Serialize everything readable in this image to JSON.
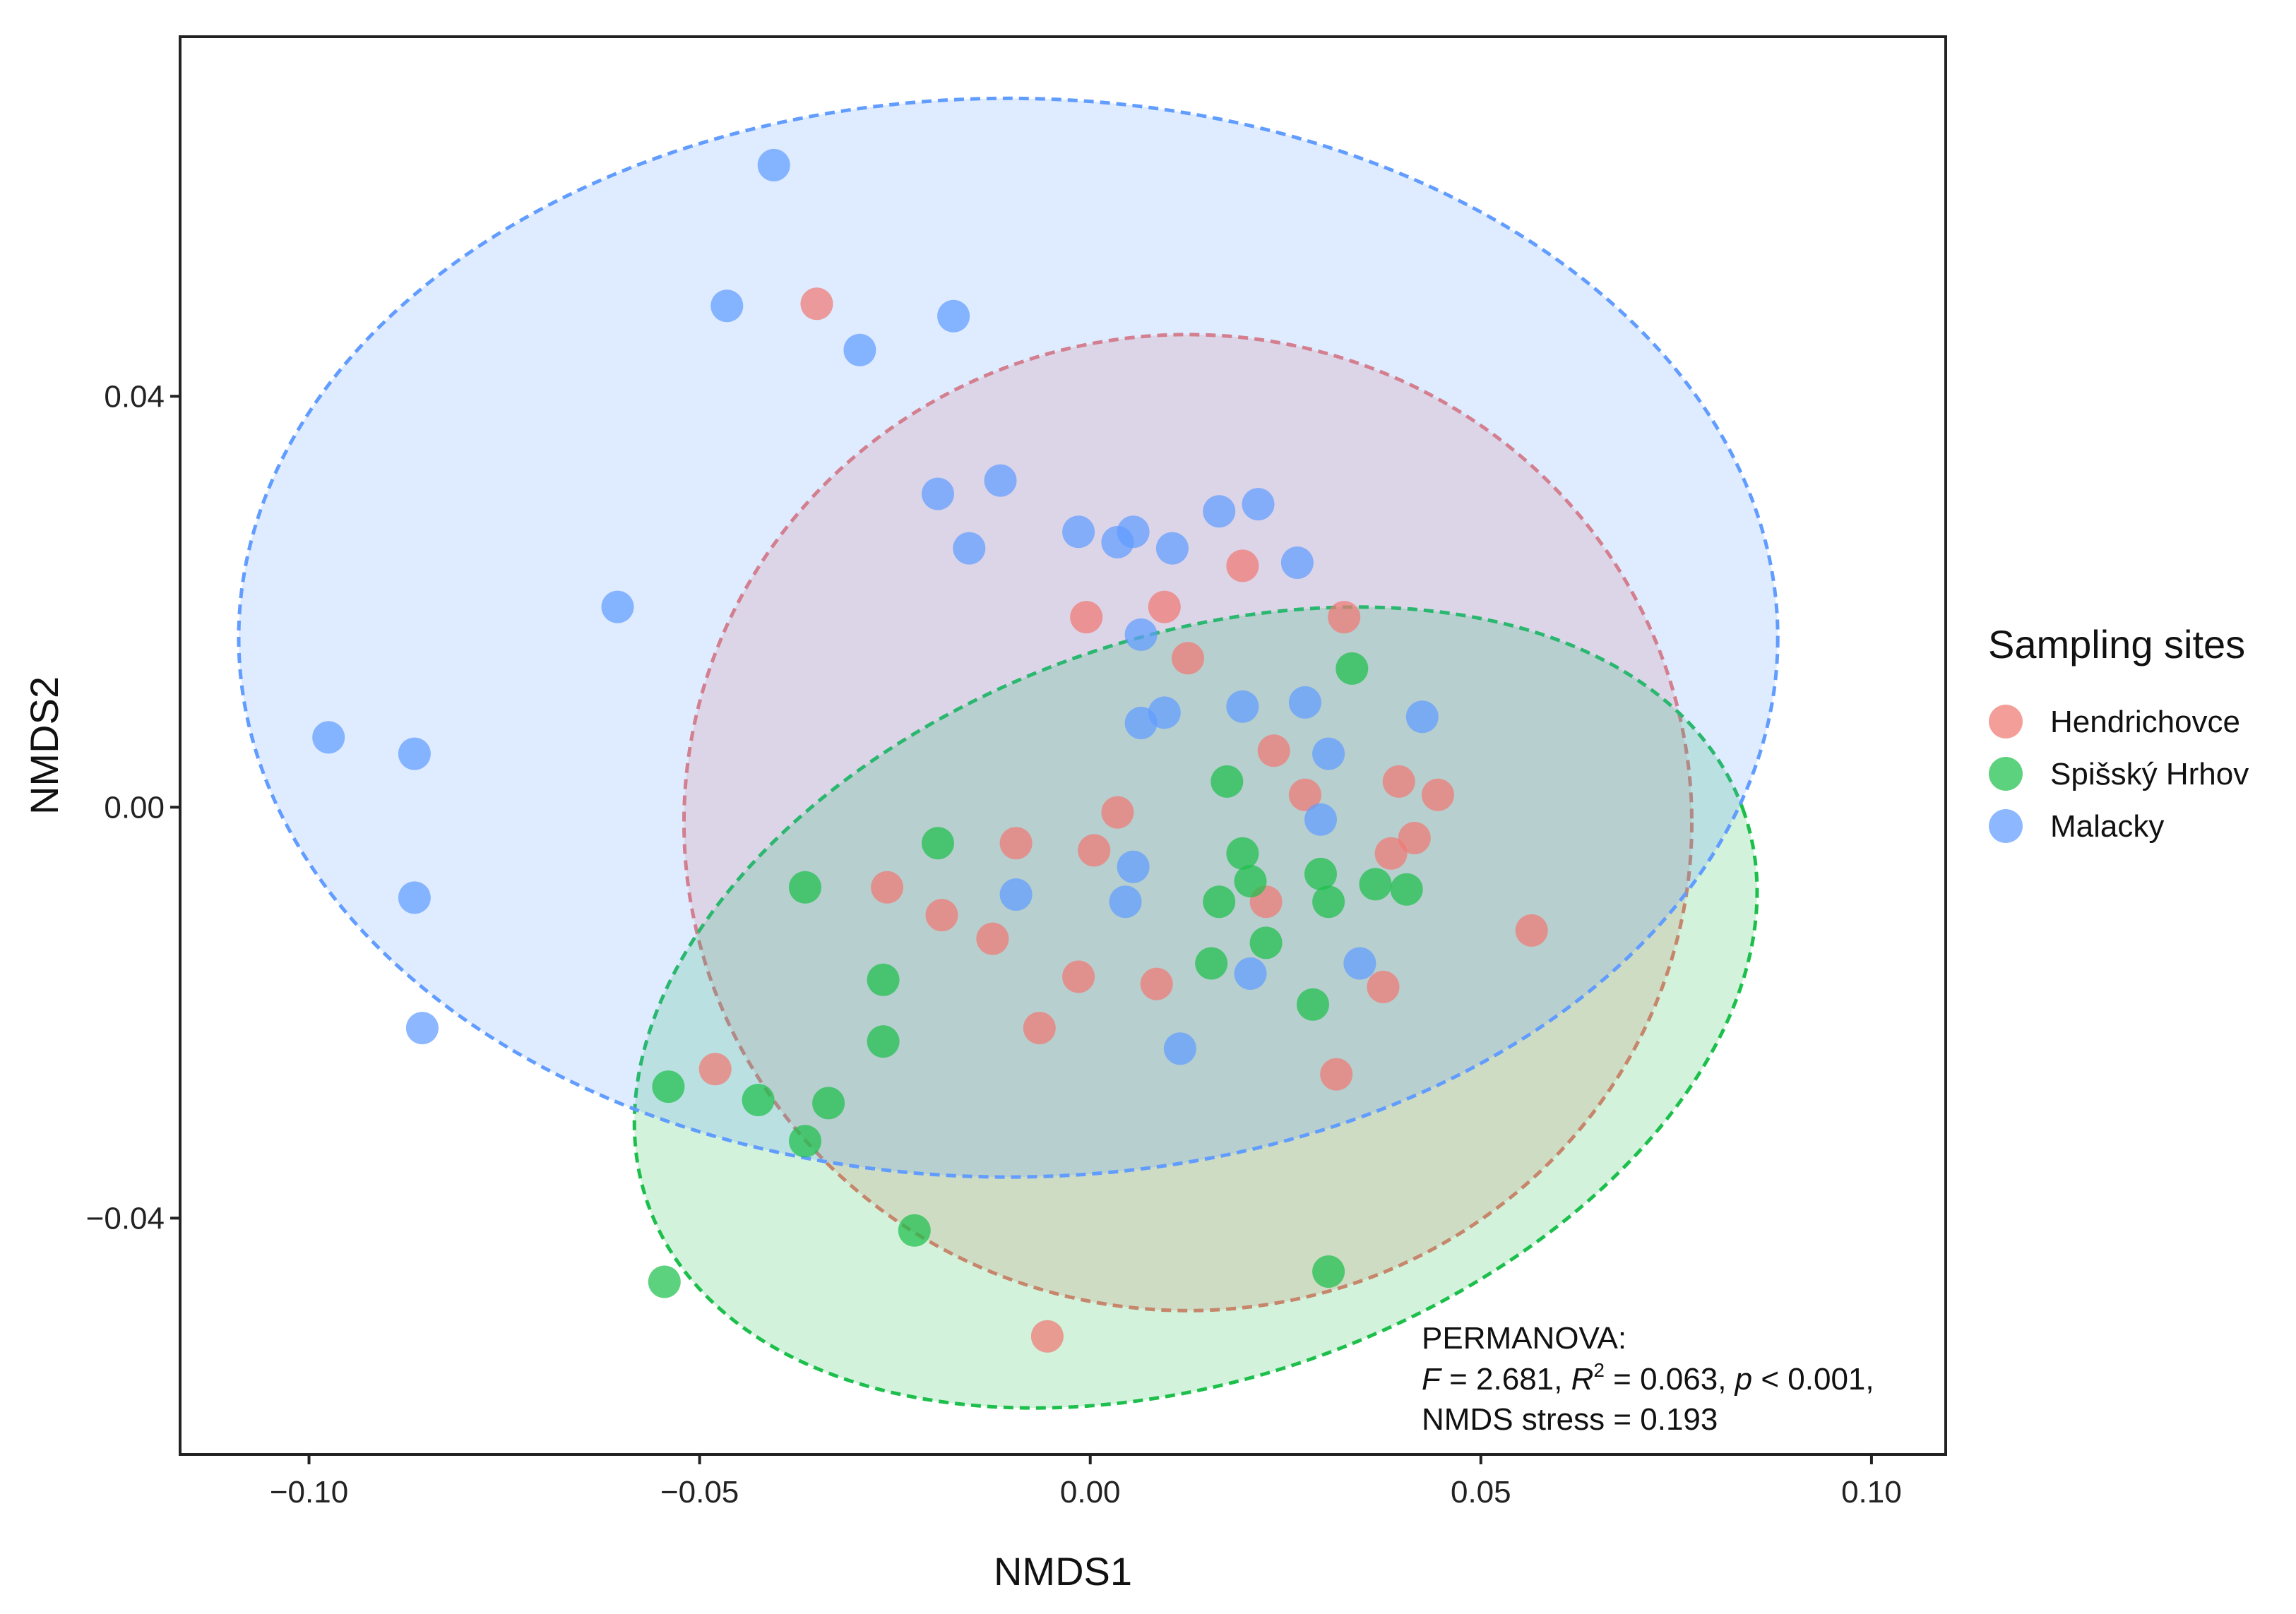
{
  "chart_data": {
    "type": "scatter",
    "title": "",
    "xlabel": "NMDS1",
    "ylabel": "NMDS2",
    "xlim": [
      -0.1165,
      0.1095
    ],
    "ylim": [
      -0.063,
      0.075
    ],
    "xticks": [
      -0.1,
      -0.05,
      0.0,
      0.05,
      0.1
    ],
    "xtick_labels": [
      "−0.10",
      "−0.05",
      "0.00",
      "0.05",
      "0.10"
    ],
    "yticks": [
      -0.04,
      0.0,
      0.04
    ],
    "ytick_labels": [
      "−0.04",
      "0.00",
      "0.04"
    ],
    "grid": false,
    "legend": {
      "title": "Sampling sites",
      "position": "right",
      "entries": [
        "Hendrichovce",
        "Spišský Hrhov",
        "Malacky"
      ]
    },
    "annotation": {
      "line1": "PERMANOVA:",
      "f_symbol": "F",
      "f_rest": " = 2.681, ",
      "r_symbol": "R",
      "r_sup": "2",
      "r_rest": " = 0.063, ",
      "p_symbol": "p",
      "p_rest": " < 0.001,",
      "line3": "NMDS stress = 0.193"
    },
    "series": [
      {
        "name": "Hendrichovce",
        "color": "#F07873",
        "points": [
          [
            -0.035,
            0.049
          ],
          [
            -0.0005,
            0.0185
          ],
          [
            0.0095,
            0.0195
          ],
          [
            0.0195,
            0.0235
          ],
          [
            0.0325,
            0.0185
          ],
          [
            0.0125,
            0.0145
          ],
          [
            0.0235,
            0.0055
          ],
          [
            0.0035,
            -0.0005
          ],
          [
            0.0005,
            -0.0042
          ],
          [
            -0.0095,
            -0.0035
          ],
          [
            -0.026,
            -0.0078
          ],
          [
            -0.019,
            -0.0105
          ],
          [
            -0.0125,
            -0.0128
          ],
          [
            -0.0015,
            -0.0165
          ],
          [
            0.0085,
            -0.0172
          ],
          [
            -0.0065,
            -0.0215
          ],
          [
            -0.048,
            -0.0255
          ],
          [
            0.0225,
            -0.0092
          ],
          [
            0.0275,
            0.0012
          ],
          [
            0.0395,
            0.0025
          ],
          [
            0.0445,
            0.0012
          ],
          [
            0.0415,
            -0.003
          ],
          [
            0.0385,
            -0.0045
          ],
          [
            0.0375,
            -0.0175
          ],
          [
            0.0315,
            -0.026
          ],
          [
            0.0565,
            -0.012
          ],
          [
            -0.0055,
            -0.0515
          ]
        ],
        "ellipse": {
          "cx": 0.0125,
          "cy": -0.0015,
          "rx": 0.0645,
          "ry": 0.0475,
          "angle": 0
        }
      },
      {
        "name": "Spišský Hrhov",
        "color": "#1DBF4C",
        "points": [
          [
            0.0335,
            0.0135
          ],
          [
            0.0175,
            0.0025
          ],
          [
            -0.0195,
            -0.0035
          ],
          [
            -0.0365,
            -0.0078
          ],
          [
            0.0195,
            -0.0045
          ],
          [
            0.0205,
            -0.0072
          ],
          [
            0.0295,
            -0.0065
          ],
          [
            0.0305,
            -0.0092
          ],
          [
            0.0365,
            -0.0075
          ],
          [
            0.0405,
            -0.008
          ],
          [
            0.0165,
            -0.0092
          ],
          [
            0.0225,
            -0.0132
          ],
          [
            0.0155,
            -0.0152
          ],
          [
            -0.0265,
            -0.0168
          ],
          [
            -0.0265,
            -0.0228
          ],
          [
            0.0285,
            -0.0192
          ],
          [
            -0.054,
            -0.0272
          ],
          [
            -0.0425,
            -0.0285
          ],
          [
            -0.0335,
            -0.0288
          ],
          [
            -0.0365,
            -0.0325
          ],
          [
            -0.0225,
            -0.0412
          ],
          [
            0.0305,
            -0.0452
          ],
          [
            -0.0545,
            -0.0462
          ]
        ],
        "ellipse": {
          "cx": 0.0135,
          "cy": -0.0195,
          "rx": 0.0745,
          "ry": 0.036,
          "angle": -20
        }
      },
      {
        "name": "Malacky",
        "color": "#619CFF",
        "points": [
          [
            -0.0405,
            0.0625
          ],
          [
            -0.0465,
            0.0488
          ],
          [
            -0.0175,
            0.0478
          ],
          [
            -0.0295,
            0.0445
          ],
          [
            -0.0195,
            0.0305
          ],
          [
            -0.0115,
            0.0318
          ],
          [
            -0.0155,
            0.0252
          ],
          [
            -0.0015,
            0.0268
          ],
          [
            0.0035,
            0.0258
          ],
          [
            0.0055,
            0.0268
          ],
          [
            0.0105,
            0.0252
          ],
          [
            0.0165,
            0.0288
          ],
          [
            0.0215,
            0.0295
          ],
          [
            0.0265,
            0.0238
          ],
          [
            0.0065,
            0.0168
          ],
          [
            -0.0605,
            0.0195
          ],
          [
            0.0095,
            0.0092
          ],
          [
            0.0065,
            0.0082
          ],
          [
            0.0195,
            0.0098
          ],
          [
            0.0275,
            0.0102
          ],
          [
            0.0425,
            0.0088
          ],
          [
            0.0305,
            0.0052
          ],
          [
            0.0295,
            -0.0012
          ],
          [
            0.0055,
            -0.0058
          ],
          [
            -0.0095,
            -0.0085
          ],
          [
            0.0045,
            -0.0092
          ],
          [
            -0.0975,
            0.0068
          ],
          [
            -0.0865,
            0.0052
          ],
          [
            -0.0865,
            -0.0088
          ],
          [
            -0.0855,
            -0.0215
          ],
          [
            0.0205,
            -0.0162
          ],
          [
            0.0345,
            -0.0152
          ],
          [
            0.0115,
            -0.0235
          ]
        ],
        "ellipse": {
          "cx": -0.0105,
          "cy": 0.0165,
          "rx": 0.0985,
          "ry": 0.0525,
          "angle": 0
        }
      }
    ]
  }
}
